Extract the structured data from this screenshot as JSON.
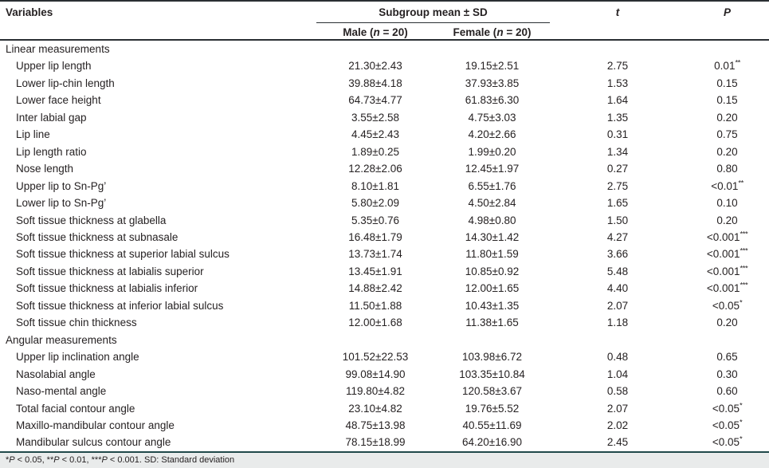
{
  "header": {
    "variables": "Variables",
    "subgroup_mean": "Subgroup mean ± SD",
    "male_parts": [
      "Male (",
      "n",
      " = 20)"
    ],
    "female_parts": [
      "Female (",
      "n",
      " = 20)"
    ],
    "t": "t",
    "p": "P"
  },
  "sections": [
    {
      "label": "Linear measurements",
      "rows": [
        {
          "variable": "Upper lip length",
          "male": "21.30±2.43",
          "female": "19.15±2.51",
          "t": "2.75",
          "p": "0.01",
          "p_stars": "**"
        },
        {
          "variable": "Lower lip-chin length",
          "male": "39.88±4.18",
          "female": "37.93±3.85",
          "t": "1.53",
          "p": "0.15",
          "p_stars": ""
        },
        {
          "variable": "Lower face height",
          "male": "64.73±4.77",
          "female": "61.83±6.30",
          "t": "1.64",
          "p": "0.15",
          "p_stars": ""
        },
        {
          "variable": "Inter labial gap",
          "male": "3.55±2.58",
          "female": "4.75±3.03",
          "t": "1.35",
          "p": "0.20",
          "p_stars": ""
        },
        {
          "variable": "Lip line",
          "male": "4.45±2.43",
          "female": "4.20±2.66",
          "t": "0.31",
          "p": "0.75",
          "p_stars": ""
        },
        {
          "variable": "Lip length ratio",
          "male": "1.89±0.25",
          "female": "1.99±0.20",
          "t": "1.34",
          "p": "0.20",
          "p_stars": ""
        },
        {
          "variable": "Nose length",
          "male": "12.28±2.06",
          "female": "12.45±1.97",
          "t": "0.27",
          "p": "0.80",
          "p_stars": ""
        },
        {
          "variable": "Upper lip to Sn-Pg’",
          "male": "8.10±1.81",
          "female": "6.55±1.76",
          "t": "2.75",
          "p": "<0.01",
          "p_stars": "**"
        },
        {
          "variable": "Lower lip to Sn-Pg’",
          "male": "5.80±2.09",
          "female": "4.50±2.84",
          "t": "1.65",
          "p": "0.10",
          "p_stars": ""
        },
        {
          "variable": "Soft tissue thickness at glabella",
          "male": "5.35±0.76",
          "female": "4.98±0.80",
          "t": "1.50",
          "p": "0.20",
          "p_stars": ""
        },
        {
          "variable": "Soft tissue thickness at subnasale",
          "male": "16.48±1.79",
          "female": "14.30±1.42",
          "t": "4.27",
          "p": "<0.001",
          "p_stars": "***"
        },
        {
          "variable": "Soft tissue thickness at superior labial sulcus",
          "male": "13.73±1.74",
          "female": "11.80±1.59",
          "t": "3.66",
          "p": "<0.001",
          "p_stars": "***"
        },
        {
          "variable": "Soft tissue thickness at labialis superior",
          "male": "13.45±1.91",
          "female": "10.85±0.92",
          "t": "5.48",
          "p": "<0.001",
          "p_stars": "***"
        },
        {
          "variable": "Soft tissue thickness at labialis inferior",
          "male": "14.88±2.42",
          "female": "12.00±1.65",
          "t": "4.40",
          "p": "<0.001",
          "p_stars": "***"
        },
        {
          "variable": "Soft tissue thickness at inferior labial sulcus",
          "male": "11.50±1.88",
          "female": "10.43±1.35",
          "t": "2.07",
          "p": "<0.05",
          "p_stars": "*"
        },
        {
          "variable": "Soft tissue chin thickness",
          "male": "12.00±1.68",
          "female": "11.38±1.65",
          "t": "1.18",
          "p": "0.20",
          "p_stars": ""
        }
      ]
    },
    {
      "label": "Angular measurements",
      "rows": [
        {
          "variable": "Upper lip inclination angle",
          "male": "101.52±22.53",
          "female": "103.98±6.72",
          "t": "0.48",
          "p": "0.65",
          "p_stars": ""
        },
        {
          "variable": "Nasolabial angle",
          "male": "99.08±14.90",
          "female": "103.35±10.84",
          "t": "1.04",
          "p": "0.30",
          "p_stars": ""
        },
        {
          "variable": "Naso-mental angle",
          "male": "119.80±4.82",
          "female": "120.58±3.67",
          "t": "0.58",
          "p": "0.60",
          "p_stars": ""
        },
        {
          "variable": "Total facial contour angle",
          "male": "23.10±4.82",
          "female": "19.76±5.52",
          "t": "2.07",
          "p": "<0.05",
          "p_stars": "*"
        },
        {
          "variable": "Maxillo-mandibular contour angle",
          "male": "48.75±13.98",
          "female": "40.55±11.69",
          "t": "2.02",
          "p": "<0.05",
          "p_stars": "*"
        },
        {
          "variable": "Mandibular sulcus contour angle",
          "male": "78.15±18.99",
          "female": "64.20±16.90",
          "t": "2.45",
          "p": "<0.05",
          "p_stars": "*"
        }
      ]
    }
  ],
  "footnote_parts": [
    {
      "text": "*",
      "italic": false
    },
    {
      "text": "P",
      "italic": true
    },
    {
      "text": " < 0.05, **",
      "italic": false
    },
    {
      "text": "P",
      "italic": true
    },
    {
      "text": " < 0.01, ***",
      "italic": false
    },
    {
      "text": "P",
      "italic": true
    },
    {
      "text": " < 0.001. SD: Standard deviation",
      "italic": false
    }
  ],
  "colors": {
    "text": "#262223",
    "rule_dark": "#2a2f33",
    "rule_navy": "#20494a",
    "footer_bg": "#e9ebeb"
  }
}
